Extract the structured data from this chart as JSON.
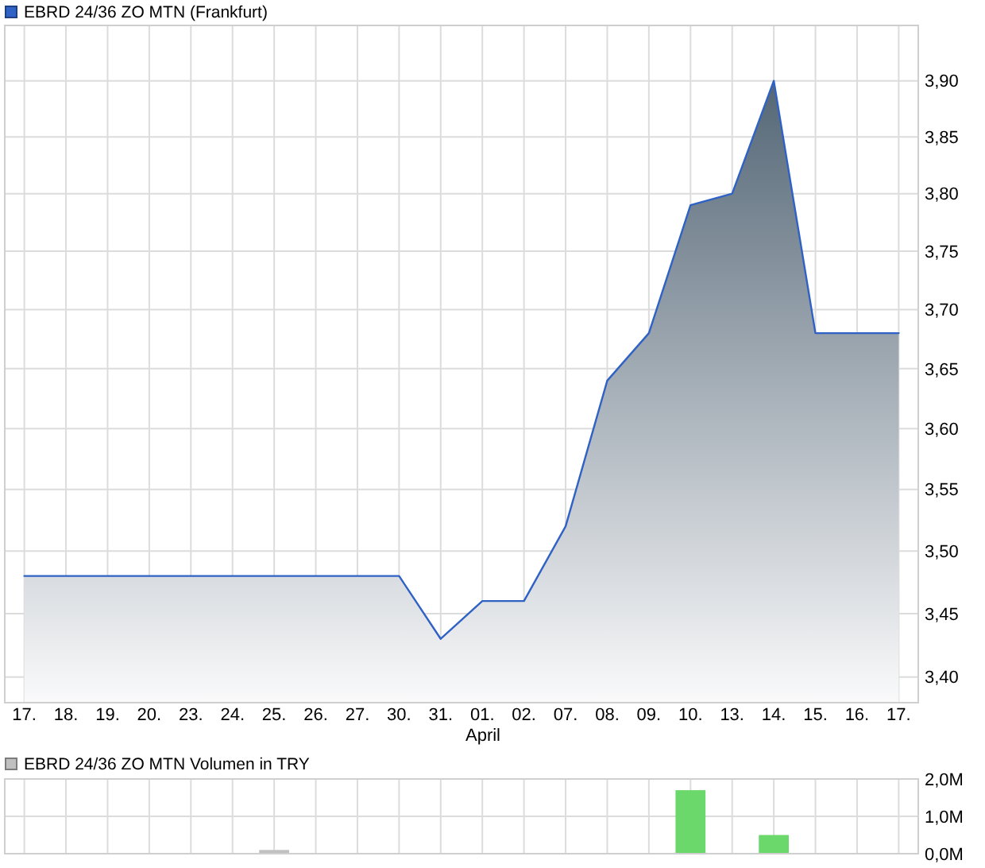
{
  "chart_data": [
    {
      "type": "area",
      "categories": [
        "17.",
        "18.",
        "19.",
        "20.",
        "23.",
        "24.",
        "25.",
        "26.",
        "27.",
        "30.",
        "31.",
        "01.",
        "02.",
        "07.",
        "08.",
        "09.",
        "10.",
        "13.",
        "14.",
        "15.",
        "16.",
        "17."
      ],
      "series": [
        {
          "name": "EBRD 24/36 ZO MTN (Frankfurt)",
          "color": "#2f62c4",
          "values": [
            3.48,
            3.48,
            3.48,
            3.48,
            3.48,
            3.48,
            3.48,
            3.48,
            3.48,
            3.48,
            3.43,
            3.46,
            3.46,
            3.52,
            3.64,
            3.68,
            3.79,
            3.8,
            3.9,
            3.68,
            3.68,
            3.68
          ]
        }
      ],
      "ylim": [
        3.38,
        3.95
      ],
      "log": "y",
      "yticks": [
        {
          "value": 3.4,
          "label": "3,40"
        },
        {
          "value": 3.45,
          "label": "3,45"
        },
        {
          "value": 3.5,
          "label": "3,50"
        },
        {
          "value": 3.55,
          "label": "3,55"
        },
        {
          "value": 3.6,
          "label": "3,60"
        },
        {
          "value": 3.65,
          "label": "3,65"
        },
        {
          "value": 3.7,
          "label": "3,70"
        },
        {
          "value": 3.75,
          "label": "3,75"
        },
        {
          "value": 3.8,
          "label": "3,80"
        },
        {
          "value": 3.85,
          "label": "3,85"
        },
        {
          "value": 3.9,
          "label": "3,90"
        }
      ],
      "grid": true,
      "legend": "top left",
      "annotations": [
        "April"
      ]
    },
    {
      "type": "bar",
      "categories": [
        "17.",
        "18.",
        "19.",
        "20.",
        "23.",
        "24.",
        "25.",
        "26.",
        "27.",
        "30.",
        "31.",
        "01.",
        "02.",
        "07.",
        "08.",
        "09.",
        "10.",
        "13.",
        "14.",
        "15.",
        "16.",
        "17."
      ],
      "series": [
        {
          "name": "EBRD 24/36 ZO MTN Volumen in TRY",
          "color": "#c0c0c0",
          "values": [
            null,
            null,
            null,
            null,
            null,
            null,
            0.1,
            null,
            null,
            null,
            null,
            null,
            null,
            null,
            null,
            null,
            1.7,
            null,
            0.5,
            null,
            null,
            null
          ],
          "colors": [
            null,
            null,
            null,
            null,
            null,
            null,
            "#c0c0c0",
            null,
            null,
            null,
            null,
            null,
            null,
            null,
            null,
            null,
            "#6ad86a",
            null,
            "#6ad86a",
            null,
            null,
            null
          ]
        }
      ],
      "ylim": [
        0,
        2
      ],
      "yticks": [
        {
          "value": 0,
          "label": "0,0M"
        },
        {
          "value": 1,
          "label": "1,0M"
        },
        {
          "value": 2,
          "label": "2,0M"
        }
      ],
      "grid": true,
      "legend": "top left",
      "tick_labels": "y"
    }
  ]
}
